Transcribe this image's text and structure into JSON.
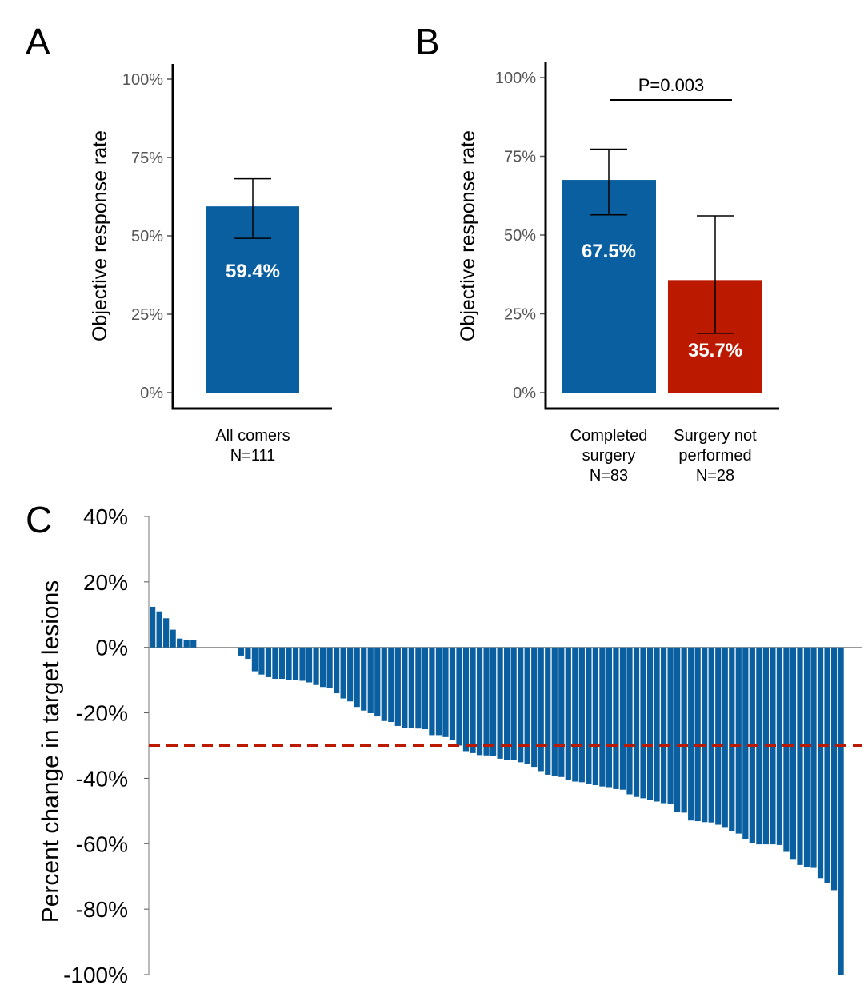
{
  "colors": {
    "blue": "#0a5fa0",
    "red": "#bb1a00",
    "dashed": "#bb1a00",
    "axis": "#000000",
    "tick_text": "#555555"
  },
  "chart_data": [
    {
      "panel": "A",
      "type": "bar",
      "ylabel": "Objective response rate",
      "yticks": [
        "0%",
        "25%",
        "50%",
        "75%",
        "100%"
      ],
      "ylim": [
        0,
        100
      ],
      "categories": [
        {
          "lines": [
            "All comers",
            "N=111"
          ]
        }
      ],
      "values": [
        59.4
      ],
      "value_labels": [
        "59.4%"
      ],
      "error_low": [
        49.2
      ],
      "error_high": [
        68.2
      ],
      "bar_colors": [
        "#0a5fa0"
      ]
    },
    {
      "panel": "B",
      "type": "bar",
      "ylabel": "Objective response rate",
      "yticks": [
        "0%",
        "25%",
        "50%",
        "75%",
        "100%"
      ],
      "ylim": [
        0,
        100
      ],
      "categories": [
        {
          "lines": [
            "Completed",
            "surgery",
            "N=83"
          ]
        },
        {
          "lines": [
            "Surgery not",
            "performed",
            "N=28"
          ]
        }
      ],
      "values": [
        67.5,
        35.7
      ],
      "value_labels": [
        "67.5%",
        "35.7%"
      ],
      "error_low": [
        56.4,
        18.8
      ],
      "error_high": [
        77.3,
        56.1
      ],
      "bar_colors": [
        "#0a5fa0",
        "#bb1a00"
      ],
      "annotation": "P=0.003"
    },
    {
      "panel": "C",
      "type": "bar",
      "ylabel": "Percent change in target lesions",
      "yticks": [
        "-100%",
        "-80%",
        "-60%",
        "-40%",
        "-20%",
        "0%",
        "20%",
        "40%"
      ],
      "ylim": [
        -100,
        40
      ],
      "reference_line": -30,
      "values": [
        12.4,
        11.0,
        8.9,
        5.4,
        2.7,
        2.2,
        2.2,
        0,
        0,
        0,
        0,
        0,
        0,
        -2.5,
        -3.5,
        -7.3,
        -8.3,
        -9.1,
        -9.6,
        -9.6,
        -9.9,
        -10.0,
        -10.2,
        -10.7,
        -11.5,
        -12.1,
        -12.3,
        -14.0,
        -15.6,
        -16.5,
        -18.2,
        -19.3,
        -20.1,
        -21.1,
        -22.5,
        -22.8,
        -24.0,
        -24.6,
        -24.7,
        -24.8,
        -25.0,
        -26.8,
        -26.8,
        -27.4,
        -28.3,
        -30.0,
        -31.7,
        -32.3,
        -32.9,
        -33.0,
        -33.3,
        -34.0,
        -34.5,
        -34.5,
        -35.1,
        -35.6,
        -36.5,
        -37.8,
        -38.9,
        -39.4,
        -39.6,
        -40.5,
        -41.0,
        -41.2,
        -41.6,
        -42.1,
        -42.5,
        -42.7,
        -43.3,
        -43.5,
        -44.9,
        -45.7,
        -46.1,
        -46.5,
        -47.1,
        -47.6,
        -47.9,
        -50.4,
        -50.5,
        -52.9,
        -53.1,
        -53.4,
        -53.5,
        -54.2,
        -54.9,
        -56.1,
        -56.9,
        -58.5,
        -59.9,
        -60.2,
        -60.2,
        -60.2,
        -60.4,
        -62.5,
        -64.9,
        -66.5,
        -67.2,
        -67.4,
        -70.5,
        -71.9,
        -74.2,
        -100
      ]
    }
  ]
}
